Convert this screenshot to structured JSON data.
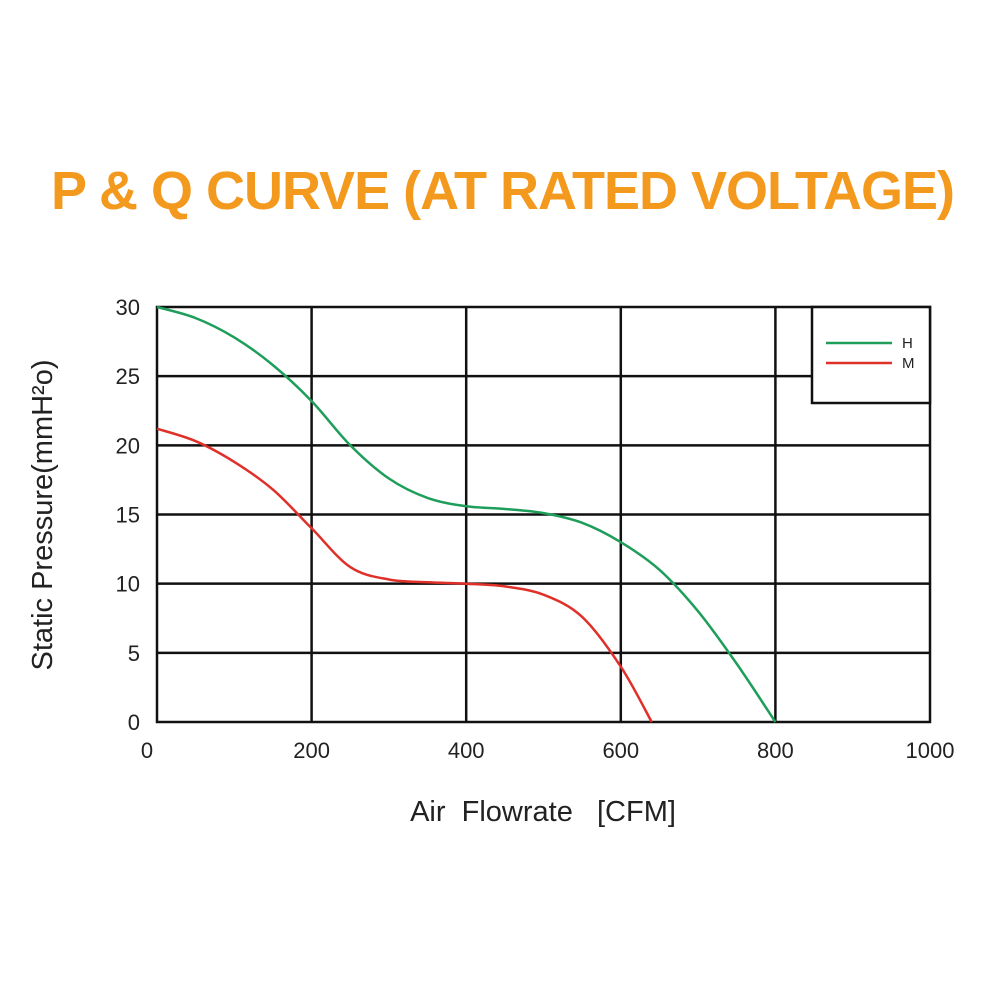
{
  "chart_data": {
    "type": "line",
    "title": "P & Q CURVE (AT RATED VOLTAGE)",
    "xlabel": "Air  Flowrate   [CFM]",
    "ylabel": "Static Pressure(mmH²o)",
    "xlim": [
      0,
      1000
    ],
    "ylim": [
      0,
      30
    ],
    "xticks": [
      "0",
      "200",
      "400",
      "600",
      "800",
      "1000"
    ],
    "yticks": [
      "0",
      "5",
      "10",
      "15",
      "20",
      "25",
      "30"
    ],
    "grid": true,
    "legend_position": "top-right",
    "series": [
      {
        "name": "H",
        "color": "#1e9e5a",
        "x": [
          0,
          50,
          100,
          150,
          200,
          250,
          300,
          350,
          400,
          450,
          500,
          550,
          600,
          650,
          700,
          750,
          800
        ],
        "y": [
          30,
          29.2,
          27.8,
          25.8,
          23.2,
          20.0,
          17.6,
          16.2,
          15.6,
          15.4,
          15.1,
          14.4,
          13.0,
          11.0,
          8.0,
          4.2,
          0
        ]
      },
      {
        "name": "M",
        "color": "#e0302a",
        "x": [
          0,
          50,
          100,
          150,
          200,
          250,
          300,
          350,
          400,
          450,
          500,
          550,
          600,
          640
        ],
        "y": [
          21.2,
          20.3,
          18.8,
          16.8,
          14.0,
          11.2,
          10.3,
          10.1,
          10.0,
          9.8,
          9.2,
          7.6,
          4.0,
          0
        ]
      }
    ]
  }
}
